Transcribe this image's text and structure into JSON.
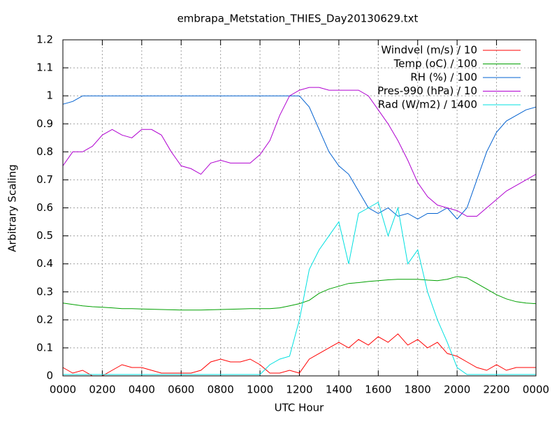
{
  "chart_data": {
    "type": "line",
    "title": "embrapa_Metstation_THIES_Day20130629.txt",
    "xlabel": "UTC Hour",
    "ylabel": "Arbitrary Scaling",
    "x": [
      0,
      0.5,
      1,
      1.5,
      2,
      2.5,
      3,
      3.5,
      4,
      4.5,
      5,
      5.5,
      6,
      6.5,
      7,
      7.5,
      8,
      8.5,
      9,
      9.5,
      10,
      10.5,
      11,
      11.5,
      12,
      12.5,
      13,
      13.5,
      14,
      14.5,
      15,
      15.5,
      16,
      16.5,
      17,
      17.5,
      18,
      18.5,
      19,
      19.5,
      20,
      20.5,
      21,
      21.5,
      22,
      22.5,
      23,
      23.5,
      24
    ],
    "series": [
      {
        "name": "Windvel (m/s) / 10",
        "color": "#ff0000",
        "values": [
          0.03,
          0.01,
          0.02,
          0,
          0,
          0.02,
          0.04,
          0.03,
          0.03,
          0.02,
          0.01,
          0.01,
          0.01,
          0.01,
          0.02,
          0.05,
          0.06,
          0.05,
          0.05,
          0.06,
          0.04,
          0.01,
          0.01,
          0.02,
          0.01,
          0.06,
          0.08,
          0.1,
          0.12,
          0.1,
          0.13,
          0.11,
          0.14,
          0.12,
          0.15,
          0.11,
          0.13,
          0.1,
          0.12,
          0.08,
          0.07,
          0.05,
          0.03,
          0.02,
          0.04,
          0.02,
          0.03,
          0.03,
          0.03
        ]
      },
      {
        "name": "Temp (oC) / 100",
        "color": "#00a000",
        "values": [
          0.26,
          0.255,
          0.25,
          0.247,
          0.245,
          0.243,
          0.24,
          0.24,
          0.239,
          0.238,
          0.237,
          0.236,
          0.235,
          0.235,
          0.235,
          0.236,
          0.237,
          0.238,
          0.239,
          0.24,
          0.24,
          0.24,
          0.243,
          0.25,
          0.258,
          0.27,
          0.295,
          0.31,
          0.32,
          0.33,
          0.333,
          0.337,
          0.34,
          0.343,
          0.345,
          0.345,
          0.345,
          0.342,
          0.34,
          0.345,
          0.355,
          0.35,
          0.33,
          0.31,
          0.29,
          0.275,
          0.265,
          0.26,
          0.258
        ]
      },
      {
        "name": "RH (%) / 100",
        "color": "#0060d0",
        "values": [
          0.97,
          0.98,
          1,
          1,
          1,
          1,
          1,
          1,
          1,
          1,
          1,
          1,
          1,
          1,
          1,
          1,
          1,
          1,
          1,
          1,
          1,
          1,
          1,
          1,
          1,
          0.96,
          0.88,
          0.8,
          0.75,
          0.72,
          0.66,
          0.6,
          0.58,
          0.6,
          0.57,
          0.58,
          0.56,
          0.58,
          0.58,
          0.6,
          0.56,
          0.6,
          0.7,
          0.8,
          0.87,
          0.91,
          0.93,
          0.95,
          0.96
        ]
      },
      {
        "name": "Pres-990 (hPa) / 10",
        "color": "#b000d0",
        "values": [
          0.75,
          0.8,
          0.8,
          0.82,
          0.86,
          0.88,
          0.86,
          0.85,
          0.88,
          0.88,
          0.86,
          0.8,
          0.75,
          0.74,
          0.72,
          0.76,
          0.77,
          0.76,
          0.76,
          0.76,
          0.79,
          0.84,
          0.93,
          1.0,
          1.02,
          1.03,
          1.03,
          1.02,
          1.02,
          1.02,
          1.02,
          1.0,
          0.95,
          0.9,
          0.84,
          0.77,
          0.69,
          0.64,
          0.61,
          0.6,
          0.59,
          0.57,
          0.57,
          0.6,
          0.63,
          0.66,
          0.68,
          0.7,
          0.72
        ]
      },
      {
        "name": "Rad (W/m2) / 1400",
        "color": "#00e0e0",
        "values": [
          0.005,
          0.005,
          0.005,
          0.005,
          0.005,
          0.005,
          0.005,
          0.005,
          0.005,
          0.005,
          0.005,
          0.005,
          0.005,
          0.005,
          0.005,
          0.005,
          0.005,
          0.005,
          0.005,
          0.005,
          0.005,
          0.04,
          0.06,
          0.07,
          0.2,
          0.38,
          0.45,
          0.5,
          0.55,
          0.4,
          0.58,
          0.6,
          0.62,
          0.5,
          0.6,
          0.4,
          0.45,
          0.3,
          0.2,
          0.12,
          0.03,
          0.005,
          0.005,
          0.005,
          0.005,
          0.005,
          0.005,
          0.005,
          0.005
        ]
      }
    ],
    "xlim": [
      0,
      24
    ],
    "xticks": [
      {
        "value": 0,
        "label": "0000"
      },
      {
        "value": 2,
        "label": "0200"
      },
      {
        "value": 4,
        "label": "0400"
      },
      {
        "value": 6,
        "label": "0600"
      },
      {
        "value": 8,
        "label": "0800"
      },
      {
        "value": 10,
        "label": "1000"
      },
      {
        "value": 12,
        "label": "1200"
      },
      {
        "value": 14,
        "label": "1400"
      },
      {
        "value": 16,
        "label": "1600"
      },
      {
        "value": 18,
        "label": "1800"
      },
      {
        "value": 20,
        "label": "2000"
      },
      {
        "value": 22,
        "label": "2200"
      },
      {
        "value": 24,
        "label": "0000"
      }
    ],
    "ylim": [
      0,
      1.2
    ],
    "yticks": [
      0,
      0.1,
      0.2,
      0.3,
      0.4,
      0.5,
      0.6,
      0.7,
      0.8,
      0.9,
      1,
      1.1,
      1.2
    ],
    "grid": true,
    "legend": "top-right"
  }
}
